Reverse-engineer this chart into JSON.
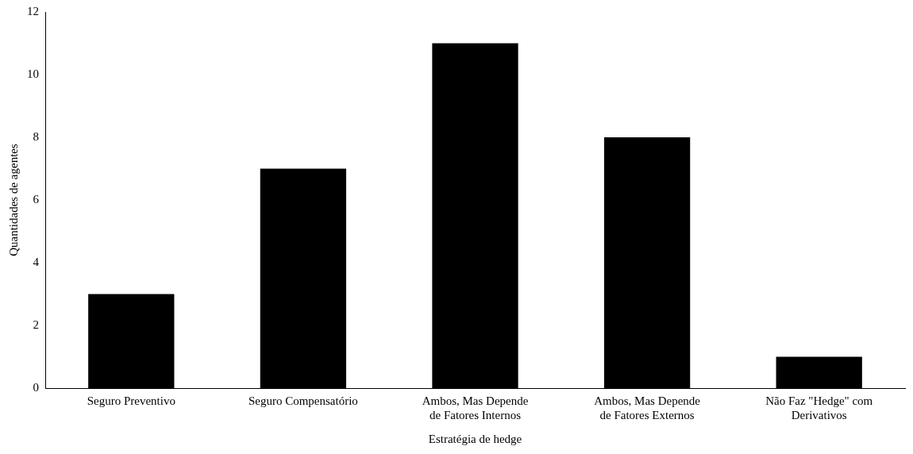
{
  "chart_data": {
    "type": "bar",
    "categories": [
      "Seguro Preventivo",
      "Seguro Compensatório",
      "Ambos, Mas Depende de Fatores Internos",
      "Ambos, Mas Depende de Fatores Externos",
      "Não Faz \"Hedge\" com Derivativos"
    ],
    "values": [
      3,
      7,
      11,
      8,
      1
    ],
    "color": "#000000",
    "xlabel": "Estratégia de hedge",
    "ylabel": "Quantidades de agentes",
    "ylim": [
      0,
      12
    ],
    "yticks": [
      0,
      2,
      4,
      6,
      8,
      10,
      12
    ],
    "grid": false,
    "legend": false
  }
}
